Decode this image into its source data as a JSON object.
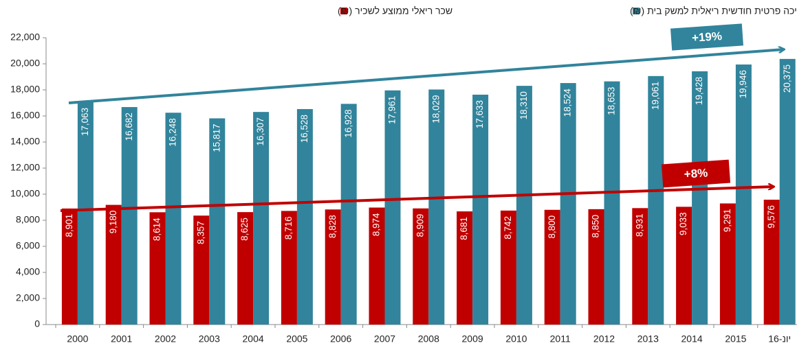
{
  "chart_data": {
    "type": "bar",
    "categories": [
      "2000",
      "2001",
      "2002",
      "2003",
      "2004",
      "2005",
      "2006",
      "2007",
      "2008",
      "2009",
      "2010",
      "2011",
      "2012",
      "2013",
      "2014",
      "2015",
      "יונ-16"
    ],
    "series": [
      {
        "name": "שכר ריאלי ממוצע לשכיר (₪)",
        "color": "#c00000",
        "values": [
          8901,
          9180,
          8614,
          8357,
          8625,
          8716,
          8828,
          8974,
          8909,
          8681,
          8742,
          8800,
          8850,
          8931,
          9033,
          9291,
          9576
        ],
        "value_labels": [
          "8,901",
          "9,180",
          "8,614",
          "8,357",
          "8,625",
          "8,716",
          "8,828",
          "8,974",
          "8,909",
          "8,681",
          "8,742",
          "8,800",
          "8,850",
          "8,931",
          "9,033",
          "9,291",
          "9,576"
        ]
      },
      {
        "name": "הוצאה לצריכה פרטית חודשית ריאלית למשק בית (₪)",
        "color": "#31849b",
        "values": [
          17063,
          16682,
          16248,
          15817,
          16307,
          16528,
          16928,
          17961,
          18029,
          17633,
          18310,
          18524,
          18653,
          19061,
          19428,
          19946,
          20375
        ],
        "value_labels": [
          "17,063",
          "16,682",
          "16,248",
          "15,817",
          "16,307",
          "16,528",
          "16,928",
          "17,961",
          "18,029",
          "17,633",
          "18,310",
          "18,524",
          "18,653",
          "19,061",
          "19,428",
          "19,946",
          "20,375"
        ]
      }
    ],
    "annotations": [
      "+19%",
      "+8%"
    ],
    "ylim": [
      0,
      22000
    ],
    "yticks": [
      0,
      {
        "value": 2000,
        "label": "2,000"
      },
      {
        "value": 4000,
        "label": "4,000"
      },
      {
        "value": 6000,
        "label": "6,000"
      },
      {
        "value": 8000,
        "label": "8,000"
      },
      {
        "value": 10000,
        "label": "10,000"
      },
      {
        "value": 12000,
        "label": "12,000"
      },
      {
        "value": 14000,
        "label": "14,000"
      },
      {
        "value": 16000,
        "label": "16,000"
      },
      {
        "value": 18000,
        "label": "18,000"
      },
      {
        "value": 20000,
        "label": "20,000"
      },
      {
        "value": 22000,
        "label": "22,000"
      }
    ],
    "grid": false
  }
}
